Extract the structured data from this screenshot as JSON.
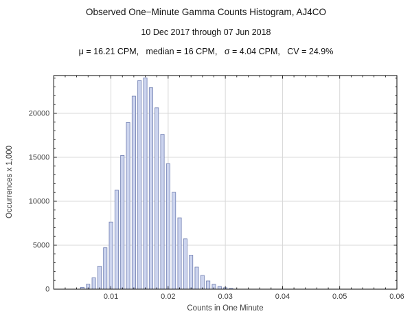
{
  "header": {
    "title": "Observed One−Minute Gamma Counts Histogram, AJ4CO",
    "subtitle": "10 Dec 2017 through 07 Jun 2018",
    "stats": "μ = 16.21 CPM,   median = 16 CPM,   σ = 4.04 CPM,   CV = 24.9%"
  },
  "chart_data": {
    "type": "bar",
    "title": "Observed One−Minute Gamma Counts Histogram, AJ4CO",
    "subtitle": "10 Dec 2017 through 07 Jun 2018",
    "annotation": "μ = 16.21 CPM,   median = 16 CPM,   σ = 4.04 CPM,   CV = 24.9%",
    "xlabel": "Counts in One Minute",
    "ylabel": "Occurrences x 1,000",
    "xlim": [
      0,
      0.06
    ],
    "ylim": [
      0,
      24300
    ],
    "grid": true,
    "legend_position": "none",
    "x_ticks": [
      0.01,
      0.02,
      0.03,
      0.04,
      0.05,
      0.06
    ],
    "x_tick_labels": [
      "0.01",
      "0.02",
      "0.03",
      "0.04",
      "0.05",
      "0.06"
    ],
    "y_ticks": [
      0,
      5000,
      10000,
      15000,
      20000
    ],
    "y_tick_labels": [
      "0",
      "5000",
      "10000",
      "15000",
      "20000"
    ],
    "bin_width": 0.001,
    "x": [
      0.005,
      0.006,
      0.007,
      0.008,
      0.009,
      0.01,
      0.011,
      0.012,
      0.013,
      0.014,
      0.015,
      0.016,
      0.017,
      0.018,
      0.019,
      0.02,
      0.021,
      0.022,
      0.023,
      0.024,
      0.025,
      0.026,
      0.027,
      0.028,
      0.029,
      0.03,
      0.031
    ],
    "values": [
      206,
      558,
      1291,
      2616,
      4712,
      7639,
      11257,
      15206,
      18961,
      21954,
      23725,
      24036,
      22918,
      20638,
      17608,
      14271,
      11016,
      8117,
      5721,
      3864,
      2505,
      1562,
      938,
      543,
      304,
      164,
      86
    ],
    "bar_fill": "#ccd4ee",
    "bar_edge": "#6d7cb0",
    "grid_color": "#d8d8d8",
    "frame_color": "#000000"
  }
}
